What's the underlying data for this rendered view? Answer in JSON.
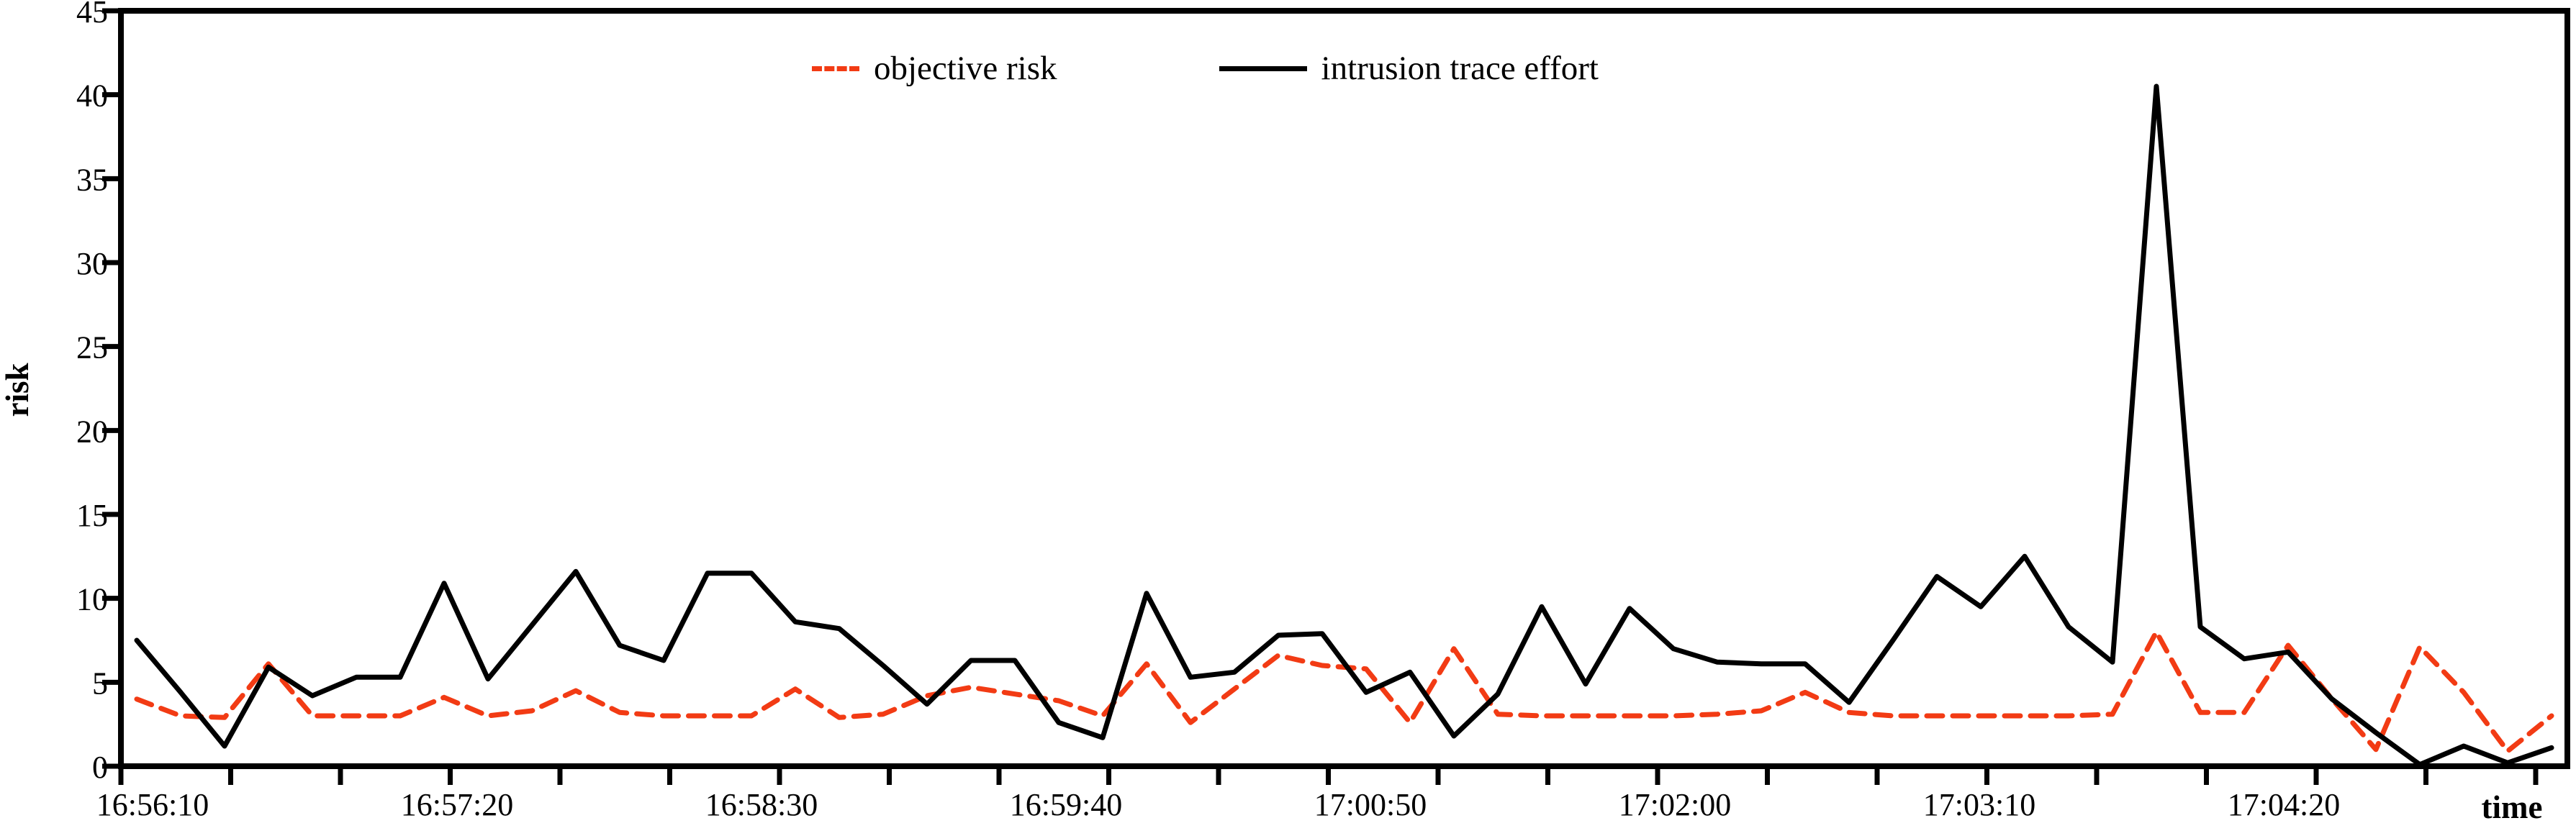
{
  "chart_data": {
    "type": "line",
    "title": "",
    "xlabel": "time",
    "ylabel": "risk",
    "x_tick_labels": [
      "16:56:10",
      "16:57:20",
      "16:58:30",
      "16:59:40",
      "17:00:50",
      "17:02:00",
      "17:03:10",
      "17:04:20"
    ],
    "x_tick_interval_seconds": 70,
    "sample_interval_seconds": 10,
    "y_ticks": [
      0,
      5,
      10,
      15,
      20,
      25,
      30,
      35,
      40,
      45
    ],
    "ylim": [
      0,
      45
    ],
    "grid": false,
    "legend_position": "top-center",
    "series": [
      {
        "name": "objective risk",
        "color": "#f23b14",
        "style": "dashed",
        "values": [
          4.0,
          3.0,
          2.9,
          6.1,
          3.0,
          3.0,
          3.0,
          4.1,
          3.0,
          3.3,
          4.5,
          3.2,
          3.0,
          3.0,
          3.0,
          4.6,
          2.9,
          3.1,
          4.2,
          4.7,
          4.3,
          3.9,
          3.0,
          6.1,
          2.6,
          4.6,
          6.6,
          6.0,
          5.8,
          2.6,
          7.0,
          3.1,
          3.0,
          3.0,
          3.0,
          3.0,
          3.1,
          3.3,
          4.4,
          3.2,
          3.0,
          3.0,
          3.0,
          3.0,
          3.0,
          3.1,
          8.0,
          3.2,
          3.2,
          7.2,
          4.0,
          1.0,
          7.1,
          4.4,
          0.9,
          3.0
        ]
      },
      {
        "name": "intrusion trace effort",
        "color": "#000000",
        "style": "solid",
        "values": [
          7.5,
          4.4,
          1.2,
          5.9,
          4.2,
          5.3,
          5.3,
          10.9,
          5.2,
          8.4,
          11.6,
          7.2,
          6.3,
          11.5,
          11.5,
          8.6,
          8.2,
          6.0,
          3.7,
          6.3,
          6.3,
          2.6,
          1.7,
          10.3,
          5.3,
          5.6,
          7.8,
          7.9,
          4.4,
          5.6,
          1.8,
          4.3,
          9.5,
          4.9,
          9.4,
          7.0,
          6.2,
          6.1,
          6.1,
          3.8,
          7.5,
          11.3,
          9.5,
          12.5,
          8.3,
          6.2,
          40.5,
          8.3,
          6.4,
          6.8,
          4.0,
          2.0,
          0.1,
          1.2,
          0.2,
          1.1
        ]
      }
    ]
  }
}
